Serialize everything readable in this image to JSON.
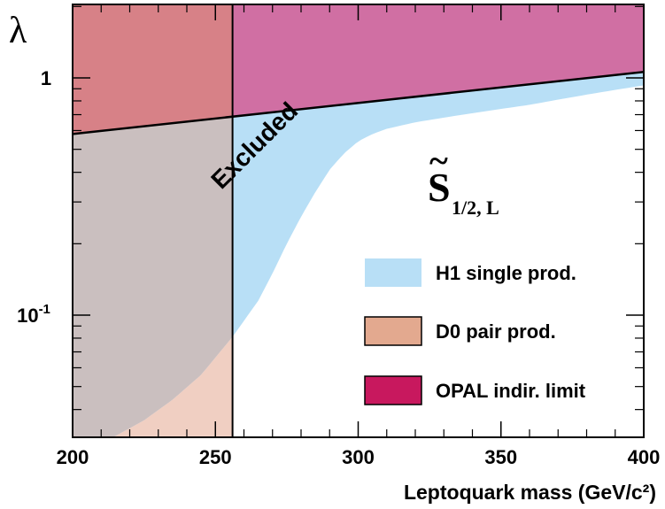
{
  "chart_data": {
    "type": "area",
    "xlabel": "Leptoquark mass (GeV/c²)",
    "ylabel": "λ",
    "xlim": [
      200,
      400
    ],
    "ylim": [
      0.03,
      2.2
    ],
    "yscale": "log",
    "x_ticks": [
      "200",
      "250",
      "300",
      "350",
      "400"
    ],
    "y_ticks": [
      {
        "value": 1,
        "base": "1",
        "exp": ""
      },
      {
        "value": 0.1,
        "base": "10",
        "exp": "-1"
      }
    ],
    "grid": false,
    "legend_position": "bottom-right",
    "model_label": {
      "main": "S",
      "accent": "~",
      "sub": "1/2, L"
    },
    "annotations": [
      {
        "text": "Excluded",
        "x": 278,
        "y": 0.4
      }
    ],
    "colors": {
      "h1": "#b8dff6",
      "d0": "#e3a98f",
      "opal": "#c8185e",
      "overlap": "#cabfbf",
      "d0_h1": "#f0cfc2",
      "opal_h1": "#d06fa3",
      "opal_d0": "#d78187"
    },
    "series": [
      {
        "name": "H1 single prod.",
        "kind": "lower-boundary",
        "x": [
          200,
          213,
          225,
          235,
          245,
          256,
          265,
          270,
          275,
          280,
          285,
          290,
          295,
          300,
          305,
          310,
          320,
          330,
          340,
          350,
          360,
          370,
          380,
          390,
          400
        ],
        "y": [
          0.022,
          0.03,
          0.036,
          0.044,
          0.056,
          0.081,
          0.115,
          0.15,
          0.2,
          0.26,
          0.33,
          0.41,
          0.48,
          0.54,
          0.58,
          0.61,
          0.65,
          0.68,
          0.71,
          0.74,
          0.77,
          0.81,
          0.85,
          0.89,
          0.93
        ]
      },
      {
        "name": "D0 pair prod.",
        "kind": "mass-limit",
        "x": [
          256
        ]
      },
      {
        "name": "OPAL indir. limit",
        "kind": "lower-boundary",
        "x": [
          200,
          400
        ],
        "y": [
          0.58,
          1.06
        ]
      }
    ]
  }
}
